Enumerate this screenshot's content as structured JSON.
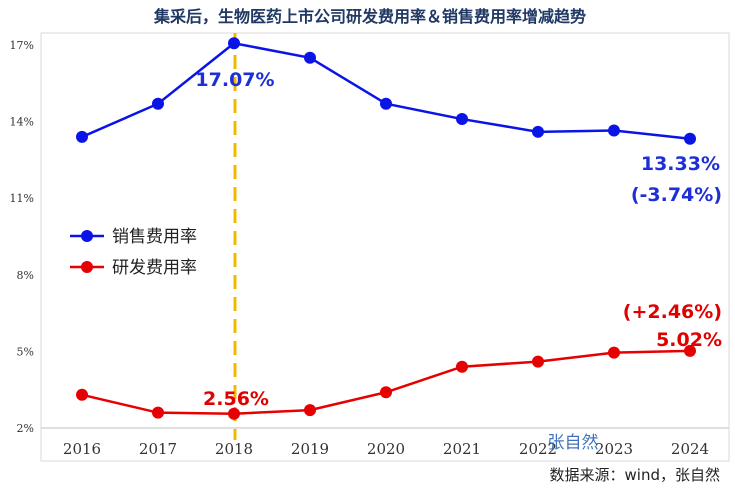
{
  "chart_data": {
    "type": "line",
    "title": "集采后，生物医药上市公司研发费用率＆销售费用率增减趋势",
    "categories": [
      "2016",
      "2017",
      "2018",
      "2019",
      "2020",
      "2021",
      "2022",
      "2023",
      "2024"
    ],
    "y_ticks": [
      "17%",
      "14%",
      "11%",
      "8%",
      "5%",
      "2%"
    ],
    "y_tick_values": [
      17,
      14,
      11,
      8,
      5,
      2
    ],
    "ylim": [
      2,
      17
    ],
    "grid": false,
    "legend_position": "middle-left",
    "reference_line": {
      "x": "2018",
      "color": "#f2b800",
      "style": "dashed"
    },
    "series": [
      {
        "name": "销售费用率",
        "color": "#0a14e6",
        "values": [
          13.4,
          14.7,
          17.07,
          16.5,
          14.7,
          14.1,
          13.6,
          13.65,
          13.33
        ]
      },
      {
        "name": "研发费用率",
        "color": "#e60000",
        "values": [
          3.3,
          2.6,
          2.56,
          2.7,
          3.4,
          4.4,
          4.6,
          4.95,
          5.02
        ]
      }
    ],
    "annotations": {
      "sales_peak": "17.07%",
      "rd_2018": "2.56%",
      "sales_2024": "13.33%",
      "sales_change": "(-3.74%)",
      "rd_change": "(+2.46%)",
      "rd_2024": "5.02%"
    },
    "source": "数据来源：wind，张自然",
    "watermark": "张自然"
  }
}
